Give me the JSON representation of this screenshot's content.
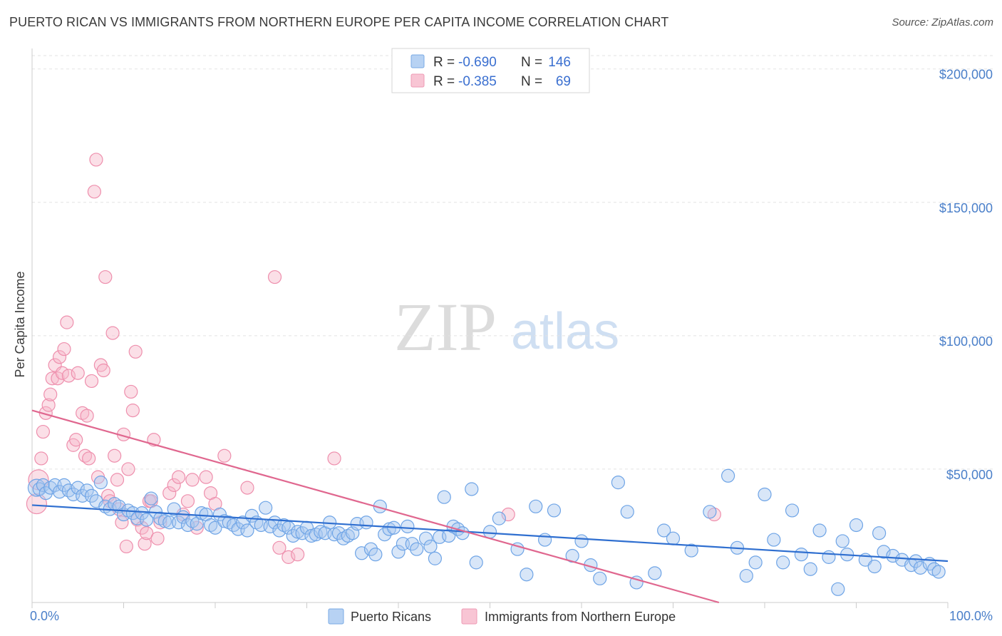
{
  "title": "PUERTO RICAN VS IMMIGRANTS FROM NORTHERN EUROPE PER CAPITA INCOME CORRELATION CHART",
  "source": "Source: ZipAtlas.com",
  "watermark": {
    "zip": "ZIP",
    "atlas": "atlas"
  },
  "legend_top": [
    {
      "r_label": "R =",
      "r_value": "-0.690",
      "n_label": "N =",
      "n_value": "146",
      "color": "#a8c8f0"
    },
    {
      "r_label": "R =",
      "r_value": "-0.385",
      "n_label": "N =",
      "n_value": "69",
      "color": "#f6b8ca"
    }
  ],
  "chart_data": {
    "type": "scatter",
    "ylabel": "Per Capita Income",
    "xlim": [
      0,
      100
    ],
    "ylim": [
      0,
      205000
    ],
    "x_tick_labels": [
      "0.0%",
      "100.0%"
    ],
    "y_ticks": [
      {
        "value": 50000,
        "label": "$50,000"
      },
      {
        "value": 100000,
        "label": "$100,000"
      },
      {
        "value": 150000,
        "label": "$150,000"
      },
      {
        "value": 200000,
        "label": "$200,000"
      }
    ],
    "grid": true,
    "legend_position": "bottom",
    "series": [
      {
        "name": "Puerto Ricans",
        "color": "#6ea4e6",
        "fill": "#a8c8f0",
        "trend": {
          "x": [
            0,
            100
          ],
          "y": [
            36500,
            15500
          ],
          "color": "#2f6fd0"
        },
        "points": [
          [
            0.5,
            43000
          ],
          [
            0.8,
            42500
          ],
          [
            1.2,
            44000
          ],
          [
            1.5,
            41000
          ],
          [
            2,
            43000
          ],
          [
            2.5,
            44000
          ],
          [
            3,
            41500
          ],
          [
            3.5,
            44000
          ],
          [
            4,
            42000
          ],
          [
            4.5,
            40500
          ],
          [
            5,
            43000
          ],
          [
            5.5,
            40000
          ],
          [
            6,
            42000
          ],
          [
            6.5,
            40000
          ],
          [
            7,
            38000
          ],
          [
            7.5,
            45000
          ],
          [
            8,
            36000
          ],
          [
            8.5,
            35000
          ],
          [
            9,
            37000
          ],
          [
            9.5,
            36000
          ],
          [
            10,
            33000
          ],
          [
            10.5,
            34500
          ],
          [
            11,
            33500
          ],
          [
            11.5,
            31500
          ],
          [
            12,
            33500
          ],
          [
            12.5,
            31000
          ],
          [
            13,
            39000
          ],
          [
            13.5,
            34000
          ],
          [
            14,
            31500
          ],
          [
            14.5,
            30500
          ],
          [
            15,
            30000
          ],
          [
            15.5,
            35000
          ],
          [
            16,
            30000
          ],
          [
            16.5,
            32000
          ],
          [
            17,
            29000
          ],
          [
            17.5,
            30500
          ],
          [
            18,
            29500
          ],
          [
            18.5,
            33500
          ],
          [
            19,
            33000
          ],
          [
            19.5,
            29000
          ],
          [
            20,
            28000
          ],
          [
            20.5,
            33000
          ],
          [
            21,
            30500
          ],
          [
            21.5,
            30000
          ],
          [
            22,
            29000
          ],
          [
            22.5,
            27500
          ],
          [
            23,
            30000
          ],
          [
            23.5,
            27000
          ],
          [
            24,
            32500
          ],
          [
            24.5,
            30000
          ],
          [
            25,
            29000
          ],
          [
            25.5,
            35500
          ],
          [
            26,
            28500
          ],
          [
            26.5,
            30000
          ],
          [
            27,
            27000
          ],
          [
            27.5,
            29000
          ],
          [
            28,
            28000
          ],
          [
            28.5,
            25000
          ],
          [
            29,
            26500
          ],
          [
            29.5,
            26000
          ],
          [
            30,
            28000
          ],
          [
            30.5,
            25000
          ],
          [
            31,
            25500
          ],
          [
            31.5,
            26500
          ],
          [
            32,
            26000
          ],
          [
            32.5,
            30000
          ],
          [
            33,
            25500
          ],
          [
            33.5,
            26000
          ],
          [
            34,
            24000
          ],
          [
            34.5,
            25000
          ],
          [
            35,
            26000
          ],
          [
            35.5,
            29500
          ],
          [
            36,
            18500
          ],
          [
            36.5,
            30000
          ],
          [
            37,
            20000
          ],
          [
            37.5,
            18000
          ],
          [
            38,
            36000
          ],
          [
            38.5,
            25500
          ],
          [
            39,
            27500
          ],
          [
            39.5,
            28000
          ],
          [
            40,
            19000
          ],
          [
            40.5,
            22000
          ],
          [
            41,
            28500
          ],
          [
            41.5,
            22000
          ],
          [
            42,
            20000
          ],
          [
            43,
            24000
          ],
          [
            43.5,
            21000
          ],
          [
            44,
            16500
          ],
          [
            44.5,
            24500
          ],
          [
            45,
            39500
          ],
          [
            45.5,
            25000
          ],
          [
            46,
            28500
          ],
          [
            46.5,
            27500
          ],
          [
            47,
            26000
          ],
          [
            48,
            42500
          ],
          [
            48.5,
            15000
          ],
          [
            50,
            26500
          ],
          [
            51,
            31500
          ],
          [
            53,
            20000
          ],
          [
            54,
            10500
          ],
          [
            55,
            36000
          ],
          [
            56,
            23500
          ],
          [
            57,
            34500
          ],
          [
            59,
            17500
          ],
          [
            60,
            23000
          ],
          [
            61,
            14000
          ],
          [
            62,
            9000
          ],
          [
            64,
            45000
          ],
          [
            65,
            34000
          ],
          [
            66,
            7500
          ],
          [
            68,
            11000
          ],
          [
            69,
            27000
          ],
          [
            70,
            24000
          ],
          [
            72,
            19500
          ],
          [
            74,
            34000
          ],
          [
            76,
            47500
          ],
          [
            77,
            20500
          ],
          [
            78,
            10000
          ],
          [
            79,
            15000
          ],
          [
            80,
            40500
          ],
          [
            81,
            23500
          ],
          [
            82,
            15000
          ],
          [
            83,
            34500
          ],
          [
            84,
            18000
          ],
          [
            85,
            12500
          ],
          [
            86,
            27000
          ],
          [
            87,
            17000
          ],
          [
            88,
            5000
          ],
          [
            88.5,
            23000
          ],
          [
            89,
            18000
          ],
          [
            90,
            29000
          ],
          [
            91,
            16000
          ],
          [
            92,
            13500
          ],
          [
            92.5,
            26000
          ],
          [
            93,
            19000
          ],
          [
            94,
            17500
          ],
          [
            95,
            16000
          ],
          [
            96,
            14000
          ],
          [
            96.5,
            15500
          ],
          [
            97,
            13000
          ],
          [
            98,
            14500
          ],
          [
            98.5,
            12500
          ],
          [
            99,
            11500
          ]
        ]
      },
      {
        "name": "Immigrants from Northern Europe",
        "color": "#ee8fad",
        "fill": "#f6b8ca",
        "trend": {
          "x": [
            0,
            75
          ],
          "y": [
            72000,
            0
          ],
          "color": "#e0678f"
        },
        "points": [
          [
            0.5,
            37000
          ],
          [
            0.7,
            46000
          ],
          [
            1,
            54000
          ],
          [
            1.2,
            64000
          ],
          [
            1.5,
            71000
          ],
          [
            1.8,
            74000
          ],
          [
            2,
            78000
          ],
          [
            2.2,
            84000
          ],
          [
            2.5,
            89000
          ],
          [
            2.8,
            84000
          ],
          [
            3,
            92000
          ],
          [
            3.3,
            86000
          ],
          [
            3.5,
            95000
          ],
          [
            3.8,
            105000
          ],
          [
            4,
            85000
          ],
          [
            4.5,
            59000
          ],
          [
            4.8,
            61000
          ],
          [
            5,
            86000
          ],
          [
            5.5,
            71000
          ],
          [
            5.8,
            55000
          ],
          [
            6,
            70000
          ],
          [
            6.2,
            54000
          ],
          [
            6.5,
            83000
          ],
          [
            6.8,
            154000
          ],
          [
            7,
            166000
          ],
          [
            7.2,
            47000
          ],
          [
            7.5,
            89000
          ],
          [
            7.8,
            87000
          ],
          [
            8,
            122000
          ],
          [
            8.3,
            40000
          ],
          [
            8.5,
            38000
          ],
          [
            8.8,
            101000
          ],
          [
            9,
            55000
          ],
          [
            9.3,
            46000
          ],
          [
            9.5,
            35000
          ],
          [
            9.8,
            30000
          ],
          [
            10,
            63000
          ],
          [
            10.3,
            21000
          ],
          [
            10.5,
            50000
          ],
          [
            10.8,
            79000
          ],
          [
            11,
            72000
          ],
          [
            11.3,
            94000
          ],
          [
            11.5,
            31000
          ],
          [
            12,
            28000
          ],
          [
            12.3,
            22000
          ],
          [
            12.5,
            26000
          ],
          [
            12.8,
            38000
          ],
          [
            13,
            38000
          ],
          [
            13.3,
            61000
          ],
          [
            13.7,
            24000
          ],
          [
            14,
            30000
          ],
          [
            15,
            41000
          ],
          [
            15.5,
            44000
          ],
          [
            16,
            47000
          ],
          [
            16.5,
            33000
          ],
          [
            17,
            38000
          ],
          [
            17.5,
            46000
          ],
          [
            18,
            28000
          ],
          [
            19,
            47000
          ],
          [
            19.5,
            41000
          ],
          [
            20,
            37000
          ],
          [
            21,
            55000
          ],
          [
            23.5,
            43000
          ],
          [
            26.5,
            122000
          ],
          [
            27,
            20500
          ],
          [
            28,
            17000
          ],
          [
            29,
            18000
          ],
          [
            33,
            54000
          ],
          [
            52,
            33000
          ],
          [
            74.5,
            33000
          ]
        ]
      }
    ]
  }
}
